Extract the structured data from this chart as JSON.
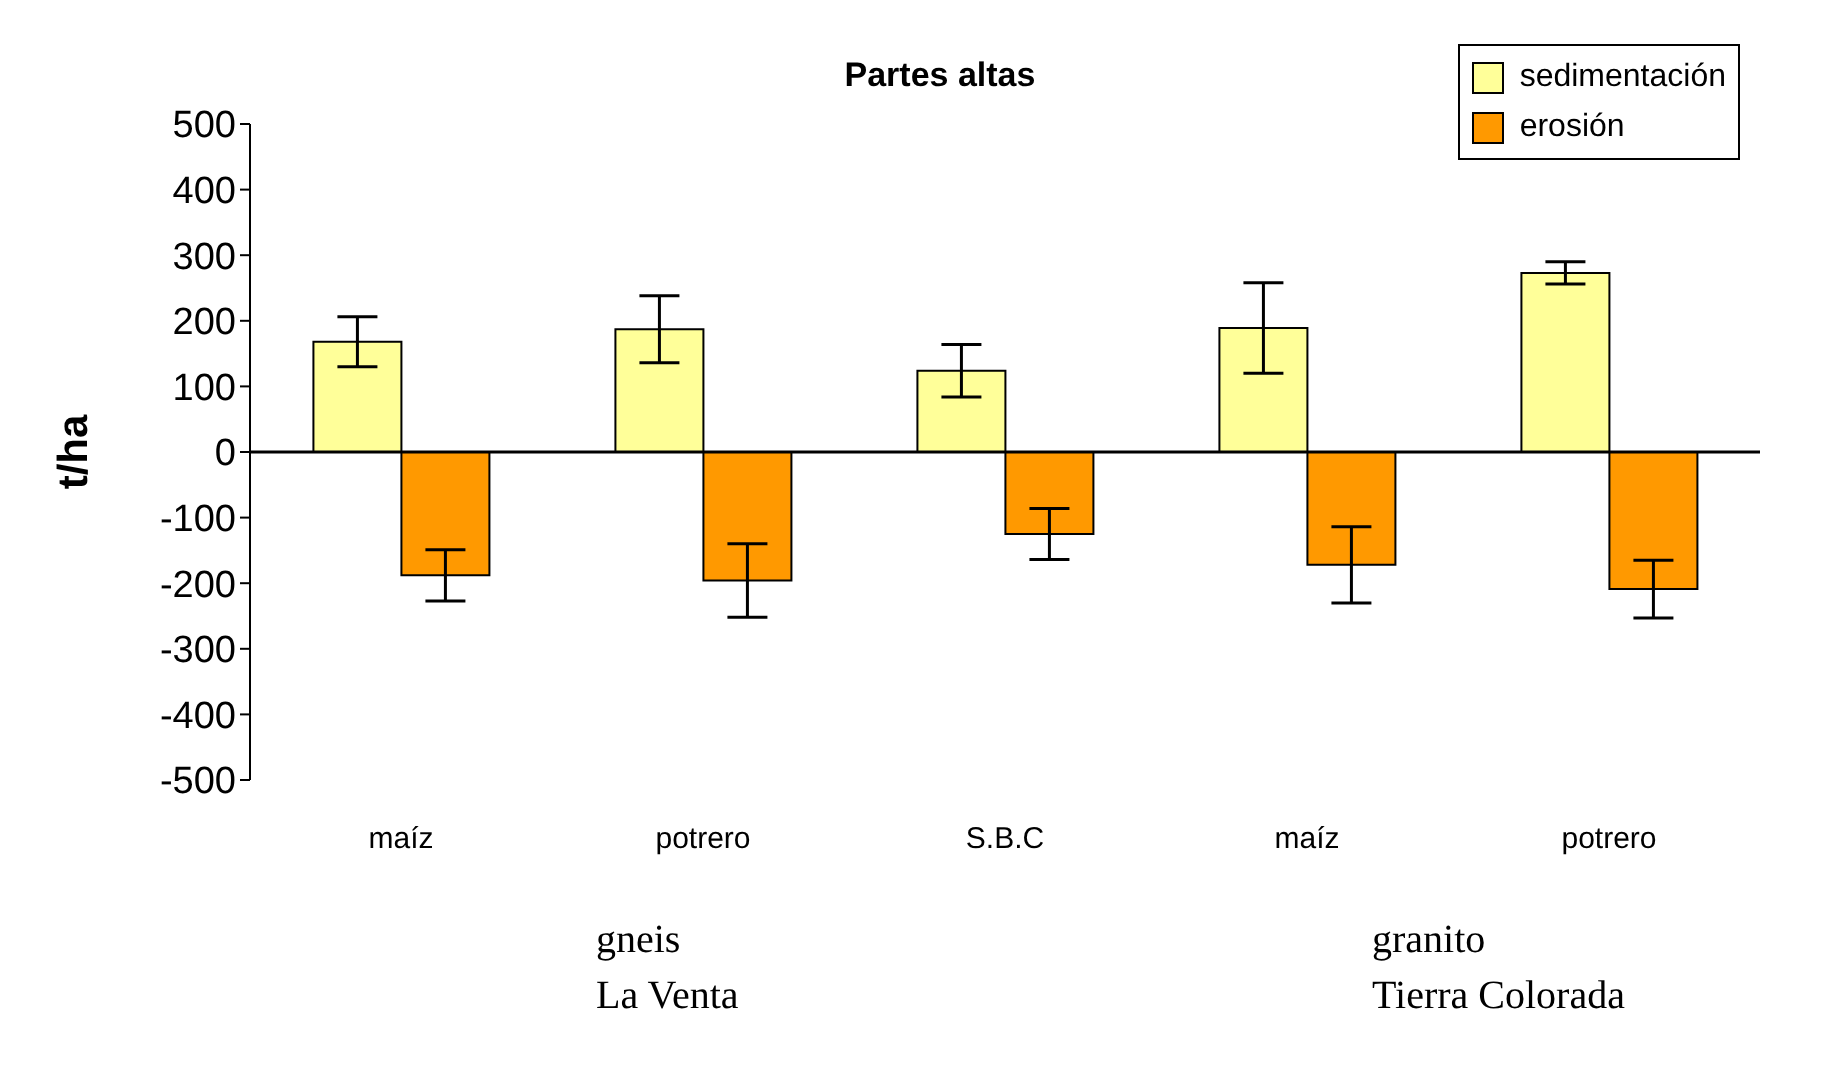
{
  "chart_data": {
    "type": "bar",
    "title": "Partes altas",
    "ylabel": "t/ha",
    "categories": [
      "maíz",
      "potrero",
      "S.B.C",
      "maíz",
      "potrero"
    ],
    "series": [
      {
        "name": "sedimentación",
        "color": "#ffff99",
        "values": [
          168,
          187,
          124,
          189,
          273
        ],
        "errors": [
          38,
          51,
          40,
          69,
          17
        ]
      },
      {
        "name": "erosión",
        "color": "#ff9900",
        "values": [
          -188,
          -196,
          -125,
          -172,
          -209
        ],
        "errors": [
          39,
          56,
          39,
          58,
          44
        ]
      }
    ],
    "ylim": [
      -500,
      500
    ],
    "yticks": [
      -500,
      -400,
      -300,
      -200,
      -100,
      0,
      100,
      200,
      300,
      400,
      500
    ],
    "legend": "top right",
    "annotations": [
      "gneis",
      "La Venta",
      "granito",
      "Tierra Colorada"
    ]
  }
}
